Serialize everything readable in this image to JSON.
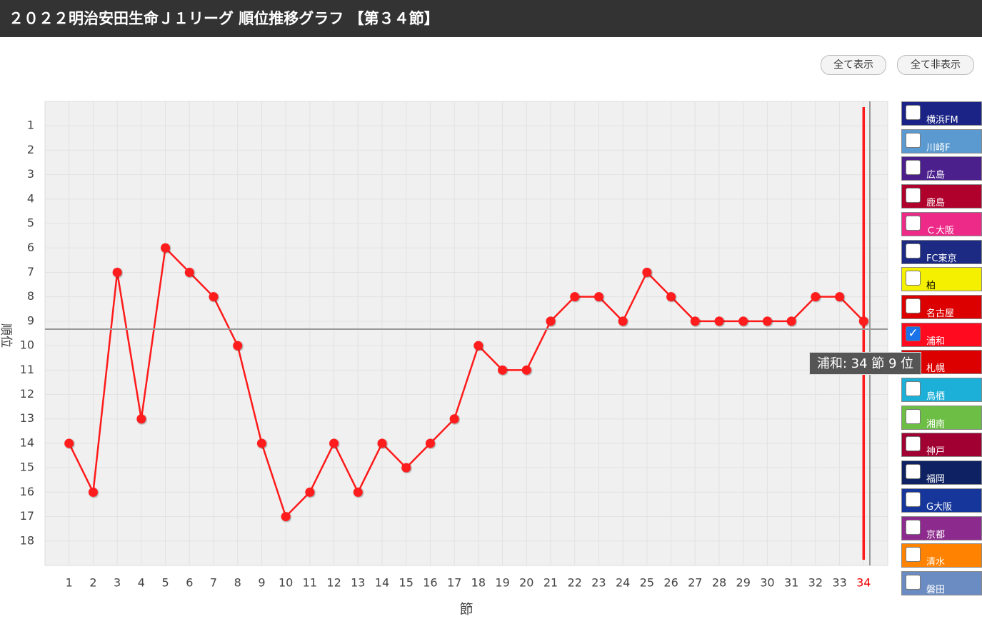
{
  "header": {
    "title": "２０２２明治安田生命Ｊ１リーグ 順位推移グラフ 【第３４節】"
  },
  "buttons": [
    "全て表示",
    "全て非表示"
  ],
  "chart_data": {
    "type": "line",
    "x_label": "節",
    "y_label": "順位",
    "x": [
      1,
      2,
      3,
      4,
      5,
      6,
      7,
      8,
      9,
      10,
      11,
      12,
      13,
      14,
      15,
      16,
      17,
      18,
      19,
      20,
      21,
      22,
      23,
      24,
      25,
      26,
      27,
      28,
      29,
      30,
      31,
      32,
      33,
      34
    ],
    "series": [
      {
        "color": "#ff1a1a",
        "values": [
          14,
          16,
          7,
          13,
          6,
          7,
          8,
          10,
          14,
          17,
          16,
          14,
          16,
          14,
          15,
          14,
          13,
          10,
          11,
          11,
          9,
          8,
          8,
          9,
          7,
          8,
          9,
          9,
          9,
          9,
          9,
          8,
          8,
          9
        ]
      }
    ],
    "xlim": [
      0,
      35
    ],
    "xticks": [
      1,
      2,
      3,
      4,
      5,
      6,
      7,
      8,
      9,
      10,
      11,
      12,
      13,
      14,
      15,
      16,
      17,
      18,
      19,
      20,
      21,
      22,
      23,
      24,
      25,
      26,
      27,
      28,
      29,
      30,
      31,
      32,
      33,
      34
    ],
    "ylim": [
      0,
      19
    ],
    "y_reversed": true,
    "yticks": [
      1,
      2,
      3,
      4,
      5,
      6,
      7,
      8,
      9,
      10,
      11,
      12,
      13,
      14,
      15,
      16,
      17,
      18
    ],
    "grid": true,
    "tooltip": "浦和: 34 節  9 位",
    "teams": [
      {
        "name": "横浜FM",
        "color": "#1b2486",
        "checked": false
      },
      {
        "name": "川崎F",
        "color": "#5a9ad0",
        "checked": false
      },
      {
        "name": "広島",
        "color": "#4b1f8c",
        "checked": false
      },
      {
        "name": "鹿島",
        "color": "#b0002c",
        "checked": false
      },
      {
        "name": "Ｃ大阪",
        "color": "#ee2a88",
        "checked": false
      },
      {
        "name": "FC東京",
        "color": "#1c2a84",
        "checked": false
      },
      {
        "name": "柏",
        "color": "#f5f000",
        "checked": false
      },
      {
        "name": "名古屋",
        "color": "#dd0000",
        "checked": false
      },
      {
        "name": "浦和",
        "color": "#ff0a1e",
        "checked": true
      },
      {
        "name": "札幌",
        "color": "#dd0000",
        "checked": false
      },
      {
        "name": "鳥栖",
        "color": "#1cb0d8",
        "checked": false
      },
      {
        "name": "湘南",
        "color": "#6dbe45",
        "checked": false
      },
      {
        "name": "神戸",
        "color": "#a00032",
        "checked": false
      },
      {
        "name": "福岡",
        "color": "#0e2163",
        "checked": false
      },
      {
        "name": "G大阪",
        "color": "#16369c",
        "checked": false
      },
      {
        "name": "京都",
        "color": "#8d2a8d",
        "checked": false
      },
      {
        "name": "清水",
        "color": "#ff8200",
        "checked": false
      },
      {
        "name": "磐田",
        "color": "#6b8cc2",
        "checked": false
      }
    ]
  }
}
